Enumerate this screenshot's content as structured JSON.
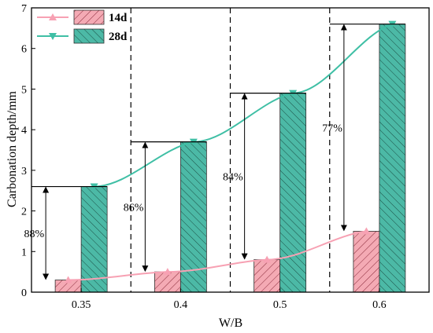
{
  "chart_data": {
    "type": "bar",
    "xlabel": "W/B",
    "ylabel": "Carbonation depth/mm",
    "ylim": [
      0,
      7
    ],
    "yticks": [
      "0",
      "1",
      "2",
      "3",
      "4",
      "5",
      "6",
      "7"
    ],
    "categories": [
      "0.35",
      "0.4",
      "0.5",
      "0.6"
    ],
    "series": [
      {
        "name": "14d",
        "values": [
          0.3,
          0.5,
          0.8,
          1.5
        ],
        "bar_color": "#f4aab4",
        "line_color": "#f7a1b3",
        "marker": "triangle-up"
      },
      {
        "name": "28d",
        "values": [
          2.6,
          3.7,
          4.9,
          6.6
        ],
        "bar_color": "#4cb9a6",
        "line_color": "#3fbfa5",
        "marker": "triangle-down"
      }
    ],
    "annotations": [
      "88%",
      "86%",
      "84%",
      "77%"
    ],
    "grid": false,
    "legend_position": "top-left"
  }
}
